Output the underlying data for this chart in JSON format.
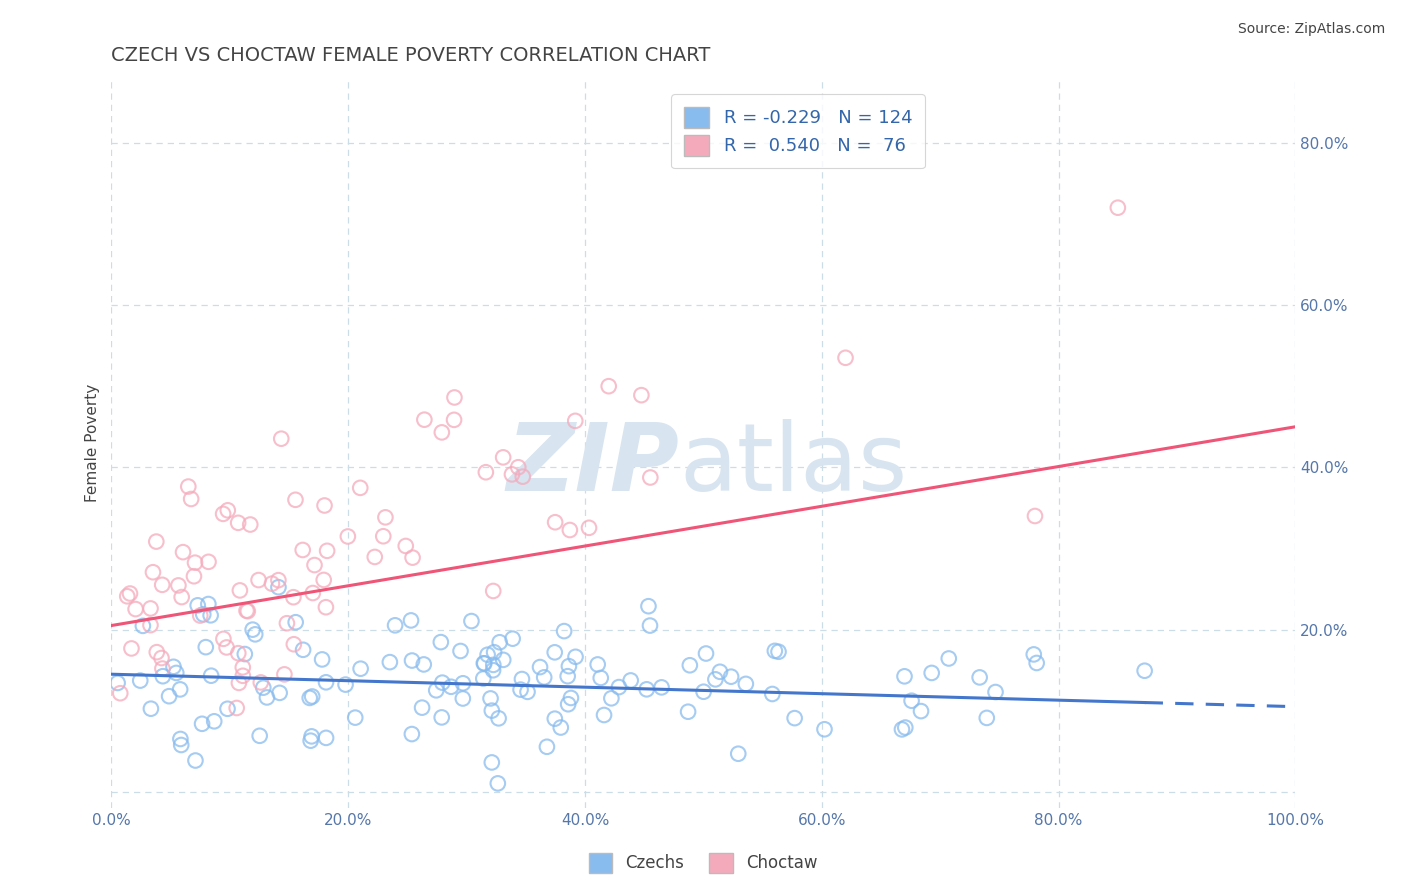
{
  "title": "CZECH VS CHOCTAW FEMALE POVERTY CORRELATION CHART",
  "source": "Source: ZipAtlas.com",
  "ylabel": "Female Poverty",
  "xlim": [
    0,
    1
  ],
  "ylim": [
    -0.02,
    0.88
  ],
  "xticks": [
    0.0,
    0.2,
    0.4,
    0.6,
    0.8,
    1.0
  ],
  "xticklabels": [
    "0.0%",
    "20.0%",
    "40.0%",
    "60.0%",
    "80.0%",
    "100.0%"
  ],
  "yticks": [
    0.0,
    0.2,
    0.4,
    0.6,
    0.8
  ],
  "yticklabels": [
    "",
    "20.0%",
    "40.0%",
    "60.0%",
    "80.0%"
  ],
  "czech_R": -0.229,
  "czech_N": 124,
  "choctaw_R": 0.54,
  "choctaw_N": 76,
  "czech_color": "#88BBEE",
  "choctaw_color": "#F5AABB",
  "czech_line_color": "#4477CC",
  "choctaw_line_color": "#EE5577",
  "title_color": "#444444",
  "axis_color": "#5577AA",
  "legend_text_color": "#3366AA",
  "watermark_color": "#D8E4F0",
  "background_color": "#FFFFFF",
  "grid_color": "#CCDDE8",
  "czech_seed": 12,
  "choctaw_seed": 55
}
